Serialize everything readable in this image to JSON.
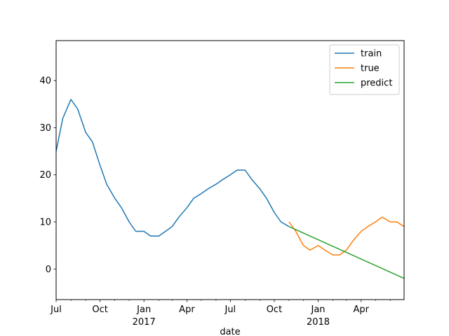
{
  "chart_data": {
    "type": "line",
    "title": "",
    "xlabel": "date",
    "ylabel": "",
    "xlim": [
      "2016-07-01",
      "2018-06-30"
    ],
    "ylim": [
      -6.5,
      48.5
    ],
    "y_ticks": [
      0,
      10,
      20,
      30,
      40
    ],
    "x_ticks": [
      {
        "date": "2016-07-01",
        "label": "Jul",
        "year": ""
      },
      {
        "date": "2016-10-01",
        "label": "Oct",
        "year": ""
      },
      {
        "date": "2017-01-01",
        "label": "Jan",
        "year": "2017"
      },
      {
        "date": "2017-04-01",
        "label": "Apr",
        "year": ""
      },
      {
        "date": "2017-07-01",
        "label": "Jul",
        "year": ""
      },
      {
        "date": "2017-10-01",
        "label": "Oct",
        "year": ""
      },
      {
        "date": "2018-01-01",
        "label": "Jan",
        "year": "2018"
      },
      {
        "date": "2018-04-01",
        "label": "Apr",
        "year": ""
      }
    ],
    "legend_position": "top-right",
    "series": [
      {
        "name": "train",
        "color": "#1f77b4",
        "x": [
          "2016-07-01",
          "2016-07-15",
          "2016-08-01",
          "2016-08-15",
          "2016-09-01",
          "2016-09-15",
          "2016-10-01",
          "2016-10-15",
          "2016-11-01",
          "2016-11-15",
          "2016-12-01",
          "2016-12-15",
          "2017-01-01",
          "2017-01-15",
          "2017-02-01",
          "2017-02-15",
          "2017-03-01",
          "2017-03-15",
          "2017-04-01",
          "2017-04-15",
          "2017-05-01",
          "2017-05-15",
          "2017-06-01",
          "2017-06-15",
          "2017-07-01",
          "2017-07-15",
          "2017-08-01",
          "2017-08-15",
          "2017-09-01",
          "2017-09-15",
          "2017-10-01",
          "2017-10-15",
          "2017-11-01"
        ],
        "y": [
          25,
          32,
          36,
          34,
          29,
          27,
          22,
          18,
          15,
          13,
          10,
          8,
          8,
          7,
          7,
          8,
          9,
          11,
          13,
          15,
          16,
          17,
          18,
          19,
          20,
          21,
          21,
          19,
          17,
          15,
          12,
          10,
          9
        ]
      },
      {
        "name": "true",
        "color": "#ff7f0e",
        "x": [
          "2017-11-01",
          "2017-11-15",
          "2017-12-01",
          "2017-12-15",
          "2018-01-01",
          "2018-01-15",
          "2018-02-01",
          "2018-02-15",
          "2018-03-01",
          "2018-03-15",
          "2018-04-01",
          "2018-04-15",
          "2018-05-01",
          "2018-05-15",
          "2018-06-01",
          "2018-06-15",
          "2018-06-30"
        ],
        "y": [
          10,
          8,
          5,
          4,
          5,
          4,
          3,
          3,
          4,
          6,
          8,
          9,
          10,
          11,
          10,
          10,
          9
        ]
      },
      {
        "name": "predict",
        "color": "#2ca02c",
        "x": [
          "2017-11-01",
          "2018-06-30"
        ],
        "y": [
          9,
          -2
        ]
      }
    ]
  }
}
